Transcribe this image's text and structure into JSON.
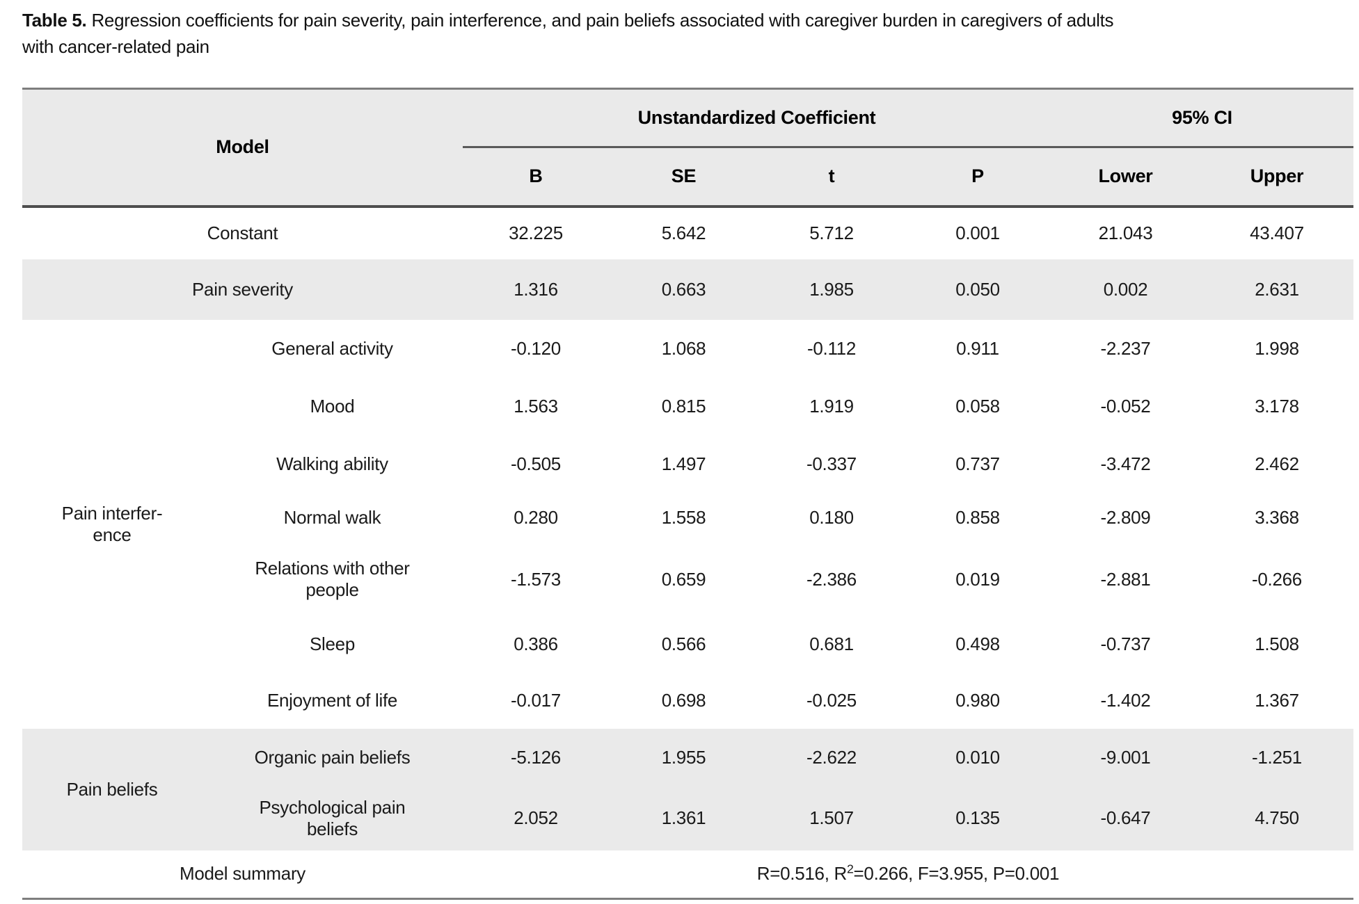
{
  "title": {
    "label": "Table 5.",
    "line1": "Regression coefficients for pain severity, pain interference, and pain beliefs associated with caregiver burden in caregivers of adults",
    "line2": "with cancer-related pain"
  },
  "colors": {
    "band_gray": "#eaeaea",
    "outer_rule": "#7e7e7e",
    "header_rule": "#4e4e4e",
    "text": "#1a1a1a"
  },
  "table": {
    "header": {
      "model": "Model",
      "unstandardized": "Unstandardized Coefficient",
      "ci": "95% CI",
      "sub": [
        "B",
        "SE",
        "t",
        "P",
        "Lower",
        "Upper"
      ]
    },
    "rows": [
      {
        "group": "",
        "label": "Constant",
        "values": [
          "32.225",
          "5.642",
          "5.712",
          "0.001",
          "21.043",
          "43.407"
        ]
      },
      {
        "group": "",
        "label": "Pain severity",
        "values": [
          "1.316",
          "0.663",
          "1.985",
          "0.050",
          "0.002",
          "2.631"
        ]
      },
      {
        "group": "Pain interfer-\nence",
        "label": "General activity",
        "values": [
          "-0.120",
          "1.068",
          "-0.112",
          "0.911",
          "-2.237",
          "1.998"
        ]
      },
      {
        "label": "Mood",
        "values": [
          "1.563",
          "0.815",
          "1.919",
          "0.058",
          "-0.052",
          "3.178"
        ]
      },
      {
        "label": "Walking ability",
        "values": [
          "-0.505",
          "1.497",
          "-0.337",
          "0.737",
          "-3.472",
          "2.462"
        ]
      },
      {
        "label": "Normal walk",
        "values": [
          "0.280",
          "1.558",
          "0.180",
          "0.858",
          "-2.809",
          "3.368"
        ]
      },
      {
        "label": "Relations with other\npeople",
        "values": [
          "-1.573",
          "0.659",
          "-2.386",
          "0.019",
          "-2.881",
          "-0.266"
        ]
      },
      {
        "label": "Sleep",
        "values": [
          "0.386",
          "0.566",
          "0.681",
          "0.498",
          "-0.737",
          "1.508"
        ]
      },
      {
        "label": "Enjoyment of life",
        "values": [
          "-0.017",
          "0.698",
          "-0.025",
          "0.980",
          "-1.402",
          "1.367"
        ]
      },
      {
        "group": "Pain beliefs",
        "label": "Organic pain beliefs",
        "values": [
          "-5.126",
          "1.955",
          "-2.622",
          "0.010",
          "-9.001",
          "-1.251"
        ]
      },
      {
        "label": "Psychological pain\nbeliefs",
        "values": [
          "2.052",
          "1.361",
          "1.507",
          "0.135",
          "-0.647",
          "4.750"
        ]
      }
    ],
    "summary": {
      "label": "Model summary",
      "value_pre": "R=0.516, R",
      "value_sup": "2",
      "value_post": "=0.266, F=3.955, P=0.001"
    }
  }
}
